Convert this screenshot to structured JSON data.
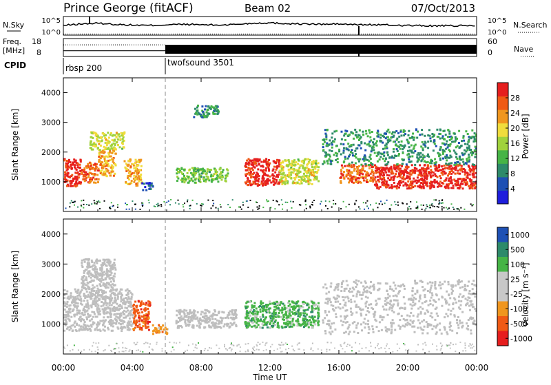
{
  "header": {
    "title": "Prince George (fitACF)",
    "beam": "Beam 02",
    "date": "07/Oct/2013"
  },
  "colors": {
    "power": [
      "#1e1edc",
      "#1e50b4",
      "#2d8a6a",
      "#46b446",
      "#a0d23c",
      "#f0dc3c",
      "#f0961e",
      "#f05a14",
      "#e61e1e"
    ],
    "velocity": [
      "#e61e1e",
      "#f05a14",
      "#f0961e",
      "#c8c8c8",
      "#c8c8c8",
      "#46b446",
      "#2d8a6a",
      "#1e50b4"
    ],
    "ground_scatter": "#bebebe"
  },
  "chart_data": [
    {
      "type": "line",
      "name": "nsky-nsearch-panel",
      "left_label": "N.Sky",
      "right_label": "N.Search",
      "left_ticks": [
        "10^5",
        "10^0"
      ],
      "right_ticks": [
        "10^5",
        "10^0"
      ],
      "x": [
        0,
        1,
        2,
        3,
        4,
        5,
        6,
        7,
        8,
        9,
        10,
        11,
        12,
        13,
        14,
        15,
        16,
        17,
        18,
        19,
        20,
        21,
        22,
        23,
        24
      ],
      "series": [
        {
          "values": [
            2.6,
            3.0,
            3.2,
            2.9,
            2.7,
            2.6,
            2.8,
            2.9,
            2.8,
            2.7,
            2.9,
            3.2,
            3.3,
            3.1,
            3.0,
            2.9,
            3.0,
            2.8,
            2.8,
            2.7,
            2.6,
            2.5,
            2.5,
            2.5,
            2.6
          ]
        },
        {
          "values": [
            0.3,
            0.3,
            0.3,
            0.3,
            0.3,
            0.3,
            0.3,
            0.3,
            0.3,
            0.3,
            0.3,
            0.3,
            0.3,
            0.3,
            0.3,
            0.3,
            0.3,
            0.3,
            0.3,
            0.3,
            0.3,
            0.3,
            0.3,
            0.3,
            0.3
          ]
        }
      ]
    },
    {
      "type": "line",
      "name": "freq-nave-panel",
      "left_label_1": "Freq.",
      "left_label_2": "[MHz]",
      "right_label": "Nave",
      "left_ticks": [
        "18",
        "8"
      ],
      "right_ticks": [
        "60",
        "0"
      ],
      "series": [
        {
          "x": [
            0,
            5.95
          ],
          "values": [
            11.2,
            11.2
          ]
        },
        {
          "x": [
            5.95,
            24
          ],
          "values": [
            11.2,
            11.2
          ]
        },
        {
          "x": [
            0,
            5.95
          ],
          "values": [
            39,
            39
          ]
        }
      ]
    },
    {
      "type": "table",
      "name": "cpid-bar",
      "label": "CPID",
      "segments": [
        {
          "text": "rbsp 200",
          "start": 0
        },
        {
          "text": "twofsound 3501",
          "start": 5.95
        }
      ]
    },
    {
      "type": "heatmap",
      "name": "power-panel",
      "ylabel": "Slant Range [km]",
      "yticks": [
        "1000",
        "2000",
        "3000",
        "4000"
      ],
      "ylim": [
        0,
        4500
      ],
      "xlim": [
        0,
        24
      ],
      "colorbar": {
        "label": "Power [dB]",
        "ticks": [
          "4",
          "8",
          "12",
          "16",
          "20",
          "24",
          "28"
        ]
      },
      "regions": [
        {
          "x": [
            0,
            1
          ],
          "y": [
            850,
            1800
          ],
          "level": 28
        },
        {
          "x": [
            1,
            2
          ],
          "y": [
            1000,
            1700
          ],
          "level": 24
        },
        {
          "x": [
            2,
            3
          ],
          "y": [
            1200,
            2100
          ],
          "level": 20
        },
        {
          "x": [
            1.5,
            3.5
          ],
          "y": [
            2100,
            2700
          ],
          "level": 16
        },
        {
          "x": [
            3.5,
            4.5
          ],
          "y": [
            900,
            1800
          ],
          "level": 20
        },
        {
          "x": [
            4.5,
            5.2
          ],
          "y": [
            750,
            1000
          ],
          "level": 4
        },
        {
          "x": [
            6.5,
            9.5
          ],
          "y": [
            1000,
            1500
          ],
          "level": 12
        },
        {
          "x": [
            7.5,
            9
          ],
          "y": [
            3200,
            3600
          ],
          "level": 8
        },
        {
          "x": [
            10.5,
            12.5
          ],
          "y": [
            900,
            1800
          ],
          "level": 28
        },
        {
          "x": [
            12.5,
            14.8
          ],
          "y": [
            950,
            1800
          ],
          "level": 16
        },
        {
          "x": [
            16,
            18
          ],
          "y": [
            1000,
            1600
          ],
          "level": 24
        },
        {
          "x": [
            18,
            24
          ],
          "y": [
            800,
            1600
          ],
          "level": 28
        },
        {
          "x": [
            15,
            24
          ],
          "y": [
            1600,
            2800
          ],
          "level": 8
        }
      ]
    },
    {
      "type": "heatmap",
      "name": "velocity-panel",
      "ylabel": "Slant Range [km]",
      "yticks": [
        "1000",
        "2000",
        "3000",
        "4000"
      ],
      "ylim": [
        0,
        4500
      ],
      "xlim": [
        0,
        24
      ],
      "xticks": [
        "00:00",
        "04:00",
        "08:00",
        "12:00",
        "16:00",
        "20:00",
        "00:00"
      ],
      "xlabel": "Time UT",
      "colorbar": {
        "label": "Velocity [m s⁻¹]",
        "ticks": [
          "1000",
          "500",
          "100",
          "25",
          "-25",
          "-100",
          "-500",
          "-1000"
        ]
      },
      "regions": [
        {
          "x": [
            0,
            4
          ],
          "y": [
            800,
            2200
          ],
          "level": "ground"
        },
        {
          "x": [
            1,
            3
          ],
          "y": [
            2200,
            3200
          ],
          "level": "ground"
        },
        {
          "x": [
            4,
            5
          ],
          "y": [
            800,
            1800
          ],
          "level": -750
        },
        {
          "x": [
            5,
            6
          ],
          "y": [
            700,
            1000
          ],
          "level": -300
        },
        {
          "x": [
            6.5,
            10
          ],
          "y": [
            900,
            1500
          ],
          "level": "ground"
        },
        {
          "x": [
            10.5,
            14.8
          ],
          "y": [
            900,
            1800
          ],
          "level": 60
        },
        {
          "x": [
            15,
            24
          ],
          "y": [
            700,
            2500
          ],
          "level": "ground"
        }
      ]
    }
  ]
}
